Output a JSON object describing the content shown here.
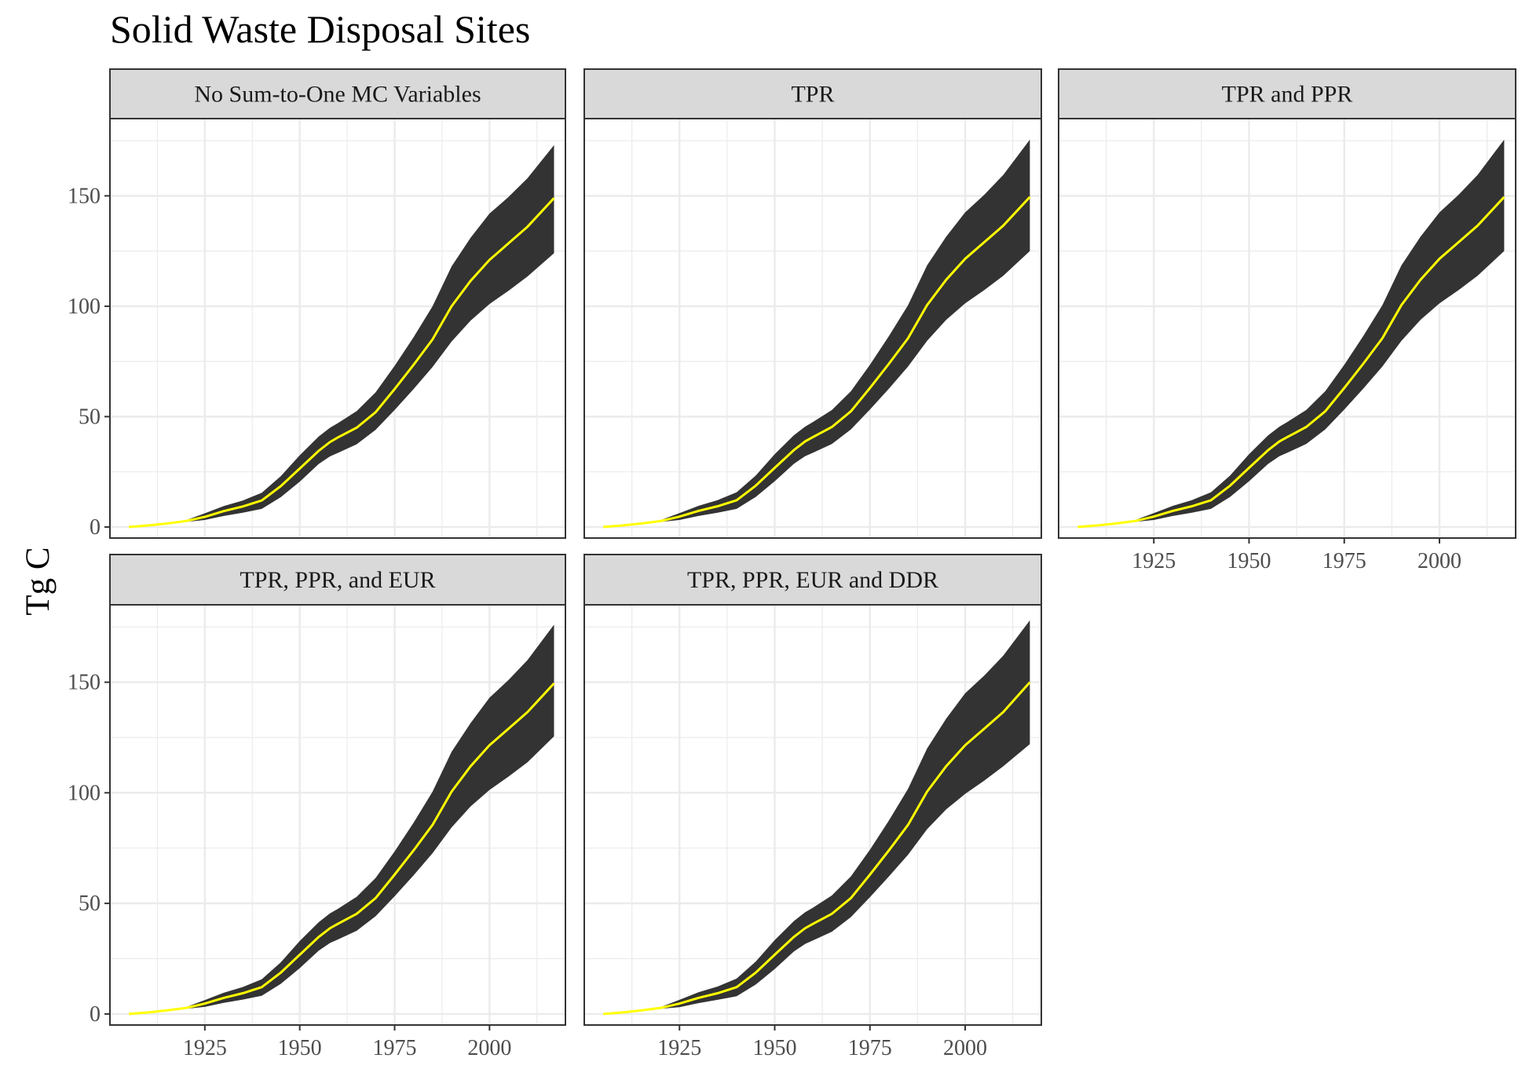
{
  "chart_data": {
    "type": "area",
    "title": "Solid Waste Disposal Sites",
    "xlabel": "",
    "ylabel": "Tg C",
    "xlim": [
      1900,
      2020
    ],
    "ylim": [
      -5,
      185
    ],
    "x_ticks": [
      "1925",
      "1950",
      "1975",
      "2000"
    ],
    "y_ticks": [
      "0",
      "50",
      "100",
      "150"
    ],
    "grid": true,
    "colors": {
      "band": "#333333",
      "line": "#ffff00",
      "strip": "#d9d9d9"
    },
    "x": [
      1905,
      1910,
      1915,
      1920,
      1925,
      1930,
      1935,
      1940,
      1945,
      1950,
      1955,
      1958,
      1960,
      1965,
      1970,
      1975,
      1980,
      1985,
      1990,
      1995,
      2000,
      2005,
      2010,
      2017
    ],
    "panels": [
      {
        "label": "No Sum-to-One MC Variables",
        "median": [
          0,
          0.7,
          1.6,
          2.7,
          4.6,
          7.2,
          9.3,
          12.0,
          18.5,
          26.5,
          34.5,
          38.5,
          40.5,
          45.0,
          52.0,
          62.5,
          73.5,
          85.0,
          100.0,
          111.5,
          121.0,
          128.5,
          136.0,
          149.0
        ],
        "lower": [
          0,
          0.6,
          1.4,
          2.3,
          3.2,
          5.0,
          6.5,
          8.2,
          13.5,
          20.5,
          28.5,
          32.0,
          33.5,
          37.5,
          44.0,
          53.0,
          62.5,
          72.5,
          84.0,
          93.5,
          101.0,
          107.0,
          113.5,
          124.0
        ],
        "upper": [
          0,
          0.8,
          1.8,
          3.1,
          6.2,
          9.5,
          12.0,
          15.5,
          23.0,
          32.5,
          41.0,
          45.0,
          47.0,
          52.5,
          61.0,
          73.0,
          86.0,
          100.0,
          118.0,
          131.0,
          142.0,
          149.5,
          158.0,
          173.0
        ]
      },
      {
        "label": "TPR",
        "median": [
          0,
          0.7,
          1.6,
          2.7,
          4.7,
          7.3,
          9.4,
          12.1,
          18.7,
          26.8,
          34.8,
          38.8,
          40.7,
          45.3,
          52.4,
          63.0,
          74.0,
          85.5,
          100.5,
          112.0,
          121.5,
          129.0,
          136.5,
          149.5
        ],
        "lower": [
          0,
          0.6,
          1.4,
          2.3,
          3.2,
          5.0,
          6.5,
          8.2,
          13.6,
          20.7,
          28.6,
          32.1,
          33.6,
          37.6,
          44.2,
          53.2,
          62.7,
          72.7,
          84.3,
          93.8,
          101.3,
          107.3,
          113.8,
          125.0
        ],
        "upper": [
          0,
          0.8,
          1.8,
          3.1,
          6.3,
          9.6,
          12.2,
          15.7,
          23.3,
          33.0,
          41.5,
          45.5,
          47.5,
          53.0,
          61.5,
          73.5,
          86.5,
          100.5,
          118.5,
          131.5,
          142.5,
          150.5,
          159.5,
          175.5
        ]
      },
      {
        "label": "TPR and PPR",
        "median": [
          0,
          0.7,
          1.6,
          2.7,
          4.7,
          7.3,
          9.4,
          12.1,
          18.7,
          26.8,
          34.8,
          38.8,
          40.7,
          45.3,
          52.4,
          63.0,
          74.0,
          85.5,
          100.5,
          112.0,
          121.5,
          129.0,
          136.5,
          149.5
        ],
        "lower": [
          0,
          0.6,
          1.4,
          2.3,
          3.2,
          5.0,
          6.5,
          8.2,
          13.6,
          20.7,
          28.6,
          32.1,
          33.6,
          37.6,
          44.2,
          53.2,
          62.7,
          72.7,
          84.3,
          93.8,
          101.3,
          107.3,
          113.8,
          125.0
        ],
        "upper": [
          0,
          0.8,
          1.8,
          3.1,
          6.3,
          9.6,
          12.2,
          15.7,
          23.3,
          33.0,
          41.5,
          45.5,
          47.5,
          53.0,
          61.5,
          73.5,
          86.5,
          100.5,
          118.5,
          131.5,
          142.5,
          150.5,
          159.5,
          175.5
        ]
      },
      {
        "label": "TPR, PPR, and EUR",
        "median": [
          0,
          0.7,
          1.6,
          2.7,
          4.7,
          7.3,
          9.4,
          12.1,
          18.7,
          26.8,
          34.8,
          38.8,
          40.7,
          45.3,
          52.4,
          63.0,
          74.0,
          85.5,
          100.5,
          112.0,
          121.5,
          129.0,
          136.5,
          149.5
        ],
        "lower": [
          0,
          0.6,
          1.4,
          2.3,
          3.2,
          5.0,
          6.5,
          8.2,
          13.6,
          20.7,
          28.6,
          32.1,
          33.6,
          37.6,
          44.2,
          53.2,
          62.7,
          72.7,
          84.3,
          93.8,
          101.3,
          107.3,
          113.8,
          125.5
        ],
        "upper": [
          0,
          0.8,
          1.8,
          3.1,
          6.3,
          9.6,
          12.2,
          15.7,
          23.3,
          33.0,
          41.5,
          45.5,
          47.5,
          53.0,
          61.5,
          73.5,
          86.5,
          100.5,
          118.5,
          131.5,
          143.0,
          151.0,
          160.0,
          176.0
        ]
      },
      {
        "label": "TPR, PPR, EUR and DDR",
        "median": [
          0,
          0.7,
          1.6,
          2.7,
          4.7,
          7.3,
          9.4,
          12.1,
          18.7,
          26.8,
          34.8,
          38.8,
          40.7,
          45.3,
          52.4,
          63.0,
          74.0,
          85.5,
          100.5,
          112.0,
          121.5,
          129.0,
          136.5,
          150.0
        ],
        "lower": [
          0,
          0.6,
          1.4,
          2.3,
          3.1,
          4.9,
          6.4,
          8.0,
          13.3,
          20.3,
          28.2,
          31.7,
          33.2,
          37.2,
          43.8,
          52.8,
          62.2,
          72.0,
          83.5,
          92.5,
          99.5,
          105.5,
          112.0,
          122.0
        ],
        "upper": [
          0,
          0.8,
          1.8,
          3.1,
          6.4,
          9.8,
          12.4,
          16.0,
          23.7,
          33.4,
          42.0,
          46.0,
          48.0,
          53.6,
          62.2,
          74.3,
          87.5,
          101.8,
          120.0,
          133.5,
          145.0,
          153.0,
          162.0,
          178.0
        ]
      }
    ]
  }
}
